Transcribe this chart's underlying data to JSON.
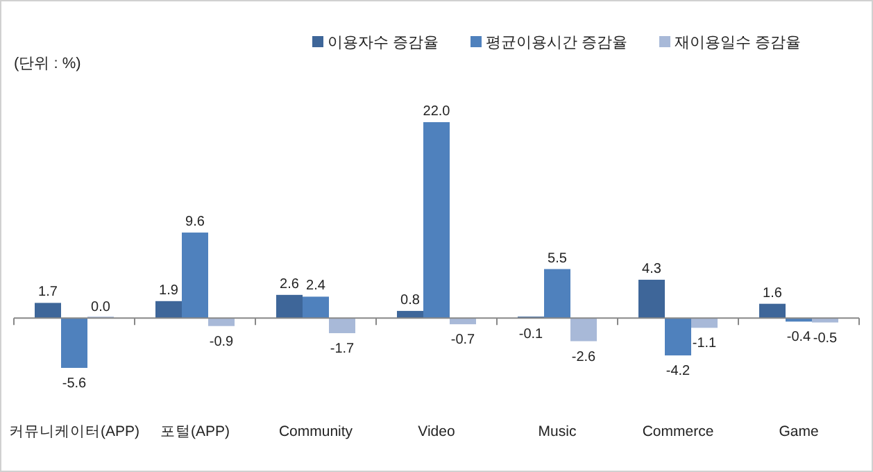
{
  "chart_data": {
    "type": "bar",
    "categories": [
      "커뮤니케이터(APP)",
      "포털(APP)",
      "Community",
      "Video",
      "Music",
      "Commerce",
      "Game"
    ],
    "series": [
      {
        "name": "이용자수 증감율",
        "color": "#3e6699",
        "values": [
          1.7,
          1.9,
          2.6,
          0.8,
          -0.1,
          4.3,
          1.6
        ],
        "value_labels": [
          "1.7",
          "1.9",
          "2.6",
          "0.8",
          "-0.1",
          "4.3",
          "1.6"
        ]
      },
      {
        "name": "평균이용시간 증감율",
        "color": "#4f81bd",
        "values": [
          -5.6,
          9.6,
          2.4,
          22.0,
          5.5,
          -4.2,
          -0.4
        ],
        "value_labels": [
          "-5.6",
          "9.6",
          "2.4",
          "22.0",
          "5.5",
          "-4.2",
          "-0.4"
        ]
      },
      {
        "name": "재이용일수 증감율",
        "color": "#a8b9d8",
        "values": [
          0.0,
          -0.9,
          -1.7,
          -0.7,
          -2.6,
          -1.1,
          -0.5
        ],
        "value_labels": [
          "0.0",
          "-0.9",
          "-1.7",
          "-0.7",
          "-2.6",
          "-1.1",
          "-0.5"
        ]
      }
    ],
    "legend": "top right",
    "annotations": [
      "(단위 : %)"
    ]
  }
}
